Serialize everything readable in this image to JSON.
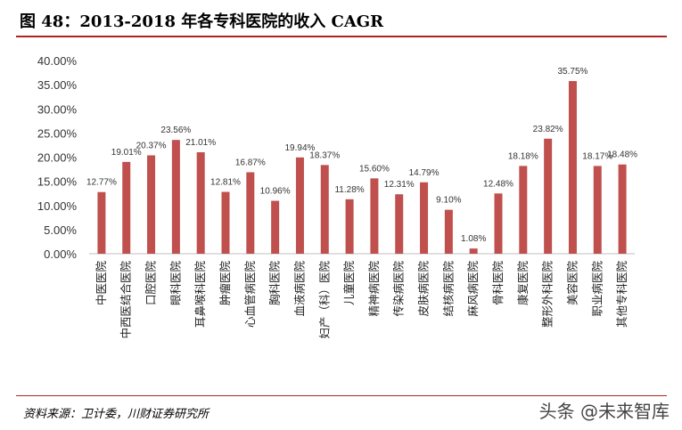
{
  "header": {
    "title": "图 48：2013-2018 年各专科医院的收入 CAGR"
  },
  "footer": {
    "source": "资料来源：卫计委，川财证券研究所",
    "watermark": "头条 @未来智库"
  },
  "colors": {
    "bar": "#c0504d",
    "rule": "#b22222",
    "grid": "#d9d9d9"
  },
  "chart_data": {
    "type": "bar",
    "title": "",
    "xlabel": "",
    "ylabel": "",
    "ylim": [
      0,
      0.4
    ],
    "yticks": [
      "0.00%",
      "5.00%",
      "10.00%",
      "15.00%",
      "20.00%",
      "25.00%",
      "30.00%",
      "35.00%",
      "40.00%"
    ],
    "grid": false,
    "categories": [
      "中医医院",
      "中西医结合医院",
      "口腔医院",
      "眼科医院",
      "耳鼻喉科医院",
      "肿瘤医院",
      "心血管病医院",
      "胸科医院",
      "血液病医院",
      "妇产（科）医院",
      "儿童医院",
      "精神病医院",
      "传染病医院",
      "皮肤病医院",
      "结核病医院",
      "麻风病医院",
      "骨科医院",
      "康复医院",
      "整形外科医院",
      "美容医院",
      "职业病医院",
      "其他专科医院"
    ],
    "values": [
      0.1277,
      0.1901,
      0.2037,
      0.2356,
      0.2101,
      0.1281,
      0.1687,
      0.1096,
      0.1994,
      0.1837,
      0.1128,
      0.156,
      0.1231,
      0.1479,
      0.091,
      0.0108,
      0.1248,
      0.1818,
      0.2382,
      0.3575,
      0.1817,
      0.1848
    ],
    "labels": [
      "12.77%",
      "19.01%",
      "20.37%",
      "23.56%",
      "21.01%",
      "12.81%",
      "16.87%",
      "10.96%",
      "19.94%",
      "18.37%",
      "11.28%",
      "15.60%",
      "12.31%",
      "14.79%",
      "9.10%",
      "1.08%",
      "12.48%",
      "18.18%",
      "23.82%",
      "35.75%",
      "18.17%",
      "18.48%"
    ]
  }
}
